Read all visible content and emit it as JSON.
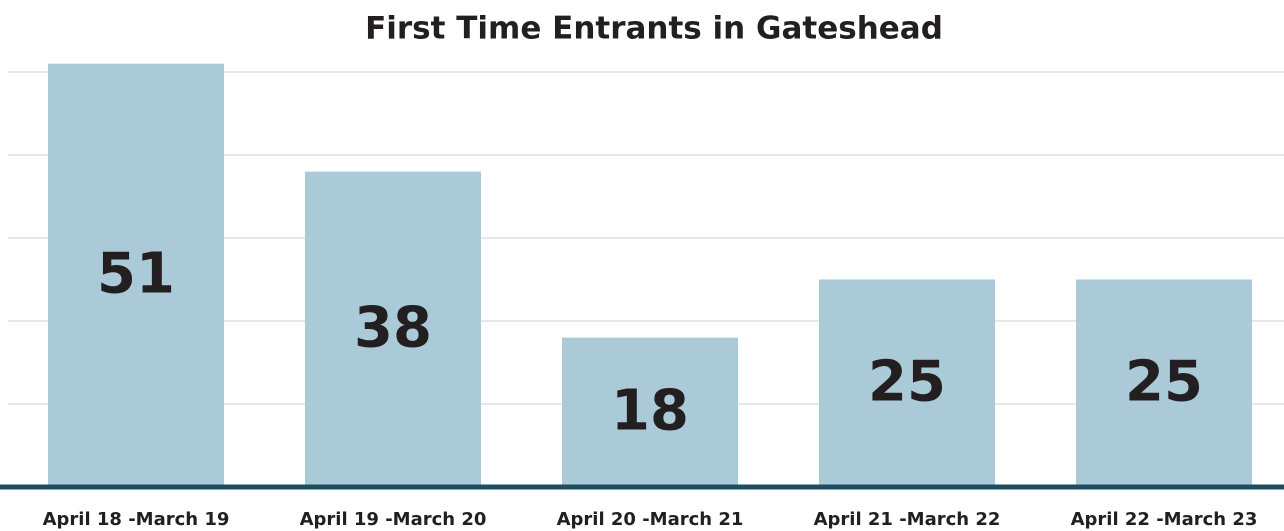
{
  "chart_data": {
    "type": "bar",
    "title": "First Time Entrants in Gateshead",
    "categories": [
      "April 18 -March 19",
      "April 19 -March 20",
      "April 20 -March 21",
      "April 21 -March 22",
      "April 22 -March 23"
    ],
    "values": [
      51,
      38,
      18,
      25,
      25
    ],
    "color": "#abcad7",
    "ylim": [
      0,
      50
    ],
    "yticks": [
      0,
      10,
      20,
      30,
      40,
      50
    ],
    "grid": true
  }
}
